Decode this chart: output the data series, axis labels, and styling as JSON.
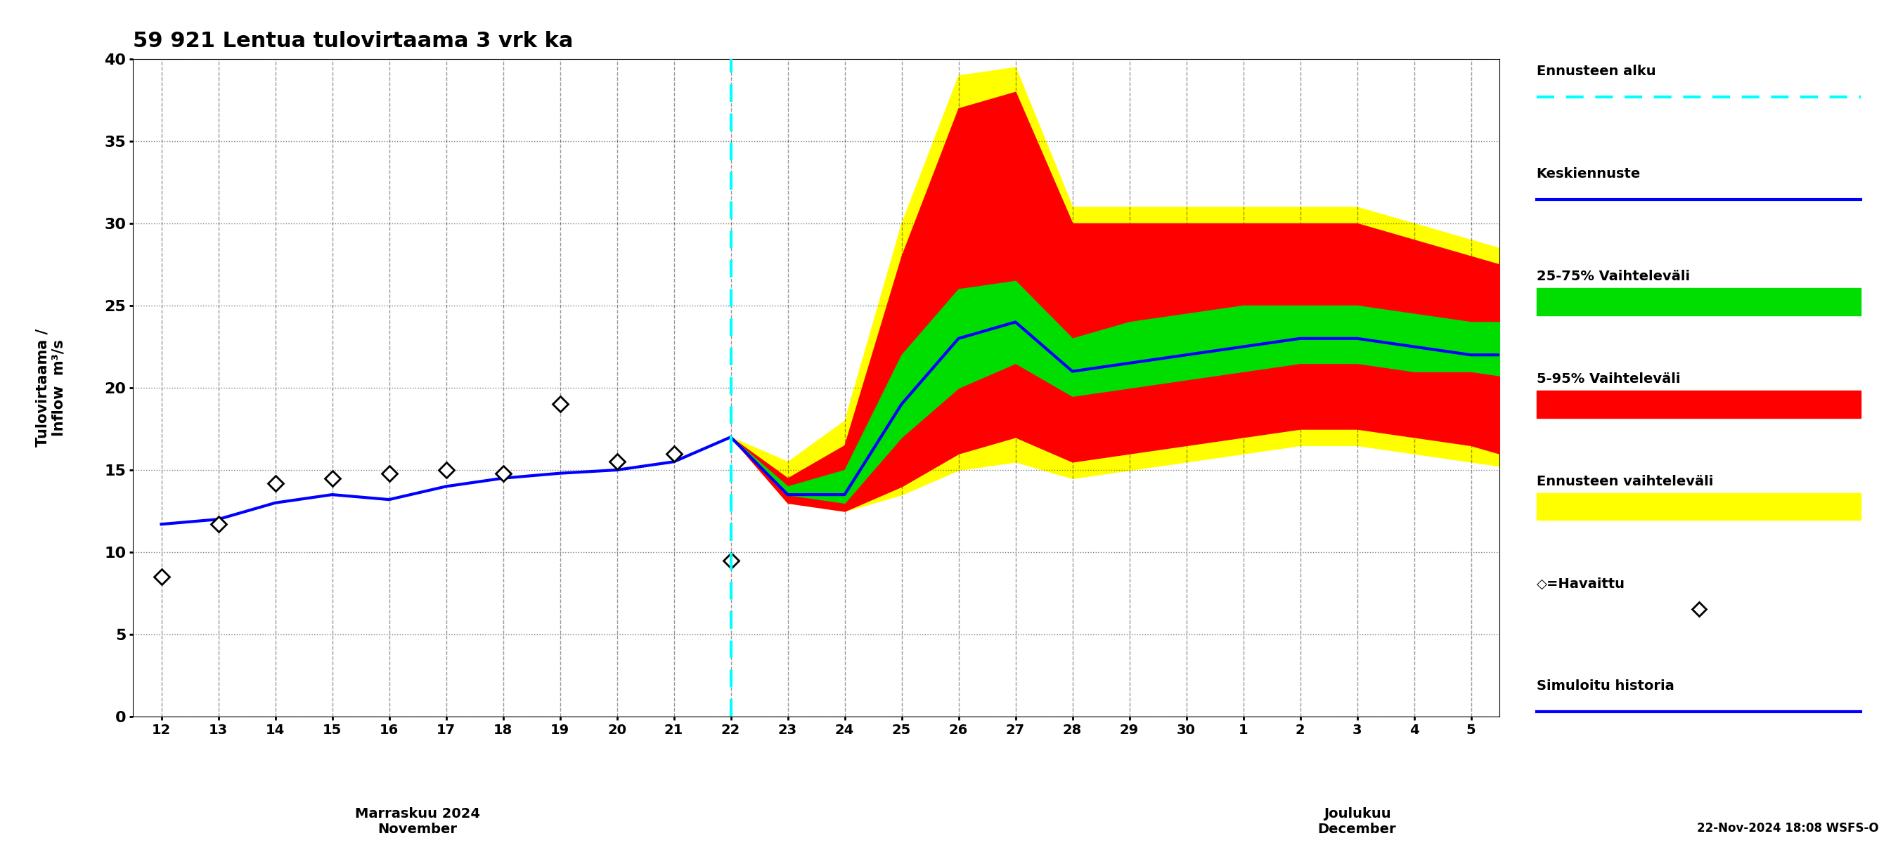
{
  "title": "59 921 Lentua tulovirtaama 3 vrk ka",
  "ylabel": "Tulovirtaama / Inflow  m³/s",
  "ylim": [
    0,
    40
  ],
  "yticks": [
    0,
    5,
    10,
    15,
    20,
    25,
    30,
    35,
    40
  ],
  "footnote": "22-Nov-2024 18:08 WSFS-O",
  "sim_history_x": [
    0,
    1,
    2,
    3,
    4,
    5,
    6,
    7,
    8,
    9,
    10
  ],
  "sim_history_y": [
    11.7,
    12.0,
    13.0,
    13.5,
    13.2,
    14.0,
    14.5,
    14.8,
    15.0,
    15.5,
    17.0
  ],
  "observed_x": [
    0,
    1,
    2,
    3,
    4,
    5,
    6,
    7,
    8,
    9,
    10
  ],
  "observed_y": [
    8.5,
    11.7,
    14.2,
    14.5,
    14.8,
    15.0,
    14.8,
    19.0,
    15.5,
    16.0,
    9.5
  ],
  "forecast_x": [
    10,
    11,
    12,
    13,
    14,
    15,
    16,
    17,
    18,
    19,
    20,
    21,
    22,
    23,
    24
  ],
  "forecast_mean": [
    17.0,
    13.5,
    13.5,
    19.0,
    23.0,
    24.0,
    21.0,
    21.5,
    22.0,
    22.5,
    23.0,
    23.0,
    22.5,
    22.0,
    22.0
  ],
  "p25": [
    17.0,
    13.5,
    13.0,
    17.0,
    20.0,
    21.5,
    19.5,
    20.0,
    20.5,
    21.0,
    21.5,
    21.5,
    21.0,
    21.0,
    20.5
  ],
  "p75": [
    17.0,
    14.0,
    15.0,
    22.0,
    26.0,
    26.5,
    23.0,
    24.0,
    24.5,
    25.0,
    25.0,
    25.0,
    24.5,
    24.0,
    24.0
  ],
  "p05": [
    17.0,
    13.0,
    12.5,
    14.0,
    16.0,
    17.0,
    15.5,
    16.0,
    16.5,
    17.0,
    17.5,
    17.5,
    17.0,
    16.5,
    15.5
  ],
  "p95": [
    17.0,
    14.5,
    16.5,
    28.0,
    37.0,
    38.0,
    30.0,
    30.0,
    30.0,
    30.0,
    30.0,
    30.0,
    29.0,
    28.0,
    27.0
  ],
  "ennus_low": [
    17.0,
    13.0,
    12.5,
    13.5,
    15.0,
    15.5,
    14.5,
    15.0,
    15.5,
    16.0,
    16.5,
    16.5,
    16.0,
    15.5,
    15.0
  ],
  "ennus_high": [
    17.0,
    15.5,
    18.0,
    30.0,
    39.0,
    39.5,
    31.0,
    31.0,
    31.0,
    31.0,
    31.0,
    31.0,
    30.0,
    29.0,
    28.0
  ],
  "color_yellow": "#FFFF00",
  "color_red": "#FF0000",
  "color_green": "#00DD00",
  "color_blue_line": "#0000FF",
  "color_cyan_dashed": "#00FFFF",
  "background_color": "#FFFFFF",
  "nov_labels": [
    "12",
    "13",
    "14",
    "15",
    "16",
    "17",
    "18",
    "19",
    "20",
    "21",
    "22",
    "23",
    "24",
    "25",
    "26",
    "27",
    "28",
    "29",
    "30"
  ],
  "dec_labels": [
    "1",
    "2",
    "3",
    "4",
    "5"
  ],
  "month_label_nov": "Marraskuu 2024\nNovember",
  "month_label_dec": "Joulukuu\nDecember",
  "legend_labels": [
    "Ennusteen alku",
    "Keskiennuste",
    "25-75% Vaihteleväli",
    "5-95% Vaihteleväli",
    "Ennusteen vaihteleväli",
    "◇=Havaittu",
    "Simuloitu historia"
  ]
}
